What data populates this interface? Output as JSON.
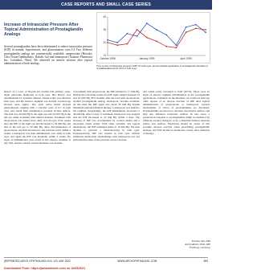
{
  "header": "CASE REPORTS AND SMALL CASE SERIES",
  "article": {
    "title": "Increase of Intraocular Pressure After Topical Administration of Prostaglandin Analogs",
    "intro": "Several prostaglandins have been determined to reduce intraocular pressure (IOP) in normal, hypertensive, and glaucomatous eyes.1-4 Two different prostaglandin analogs are commercially available: unoprostone (Rescula; Ciba Vision Ophthalmics, Duluth, Ga) and latanoprost (Xalatan; Pharmacia Inc, Columbus, Ohio). We observed an inverse reaction after topical administration of both analogs."
  },
  "figure": {
    "chart_data": {
      "type": "line",
      "categories": [
        "October 1998",
        null,
        null,
        null,
        "January 1999",
        null,
        null,
        null,
        "April 1999",
        null,
        null
      ],
      "series": [
        {
          "color": "#2f5fb3",
          "values": [
            22,
            20,
            27,
            25,
            35,
            30,
            26,
            18,
            32,
            34,
            28
          ]
        },
        {
          "color": "#c0302b",
          "values": [
            20,
            18,
            19,
            30,
            24,
            21,
            17,
            16,
            28,
            31,
            30
          ]
        }
      ],
      "ylim": [
        10,
        40
      ],
      "yticks": [
        10,
        20,
        30,
        40
      ],
      "grid": false
    },
    "caption": "Time course of intraocular pressure (IOP) for both eyes. Arrows indicate application of prostaglandin derivates or crystalline/latanoprost (OU) of both eyes."
  },
  "body": {
    "columns": [
      "Report of a Case. A 58-year-old woman had primary open-angle glaucoma diagnosed in both eyes. Her history was unremarkable for systemic disease. Visual acuity was 20/20 in both eyes, and the anterior segment was normal. Gonioscopy showed open angles. The optic nerve heads showed glaucomatous cupping with a cup-disc ratio of 0.7 in both eyes, and visual field examination revealed arcuate defects. The IOP was 24 mm Hg in the right eye and 22 mm Hg in the left eye under treatment with timolol maleate. Treatment with unoprostone was added twice daily in both eyes. Four weeks later the IOP of the right eye had increased to 34 mm Hg and that of the left eye to 30 mm Hg. After discontinuation of unoprostone, the IOP decreased to the previous level within 2 weeks. Latanoprost was then administered once daily in both eyes, and again the IOP rose markedly within 3 weeks. No signs of inflammation were noted in the anterior chamber at any visit, and the central corneal thickness was normal.",
      "of treatment with unoprostone, the IOP returned to 17 mm Hg. During the following weeks the IOP again ranged between 15 and 19 mm Hg. Five months after the trial with unoprostone, another prostaglandin analog, latanoprost, became available. At this time the IOP again was about 30 mm Hg despite maximum tolerated medical therapy. Latanoprost was added to the regimen. Surprisingly, the IOP immediately increased to 40 mm Hg. After 3 days of treatment, latanoprost was stopped and the IOP decreased to 22 mm Hg within 5 days. The increase of IOP was accompanied by corneal edema and a decreased visual acuity. With other systemic and topical medications, the IOP remained stable at 19 mm Hg. We then decided to perform a trabeculectomy in both eyes. Postoperatively, IOP was normal in both eyes without additional medication. Rechallenge with latanoprost was not performed because of the previous severe reaction.",
      "and visual acuity increased to 6/20 (20/70). There were no signs of anterior segment inflammation at the prostaglandin applications. Comment. In the literature, we could not find any other reports of an inverse reaction of IOP after topical administration of unoprostone or latanoprost. Several mechanisms of action of prostaglandins are discussed. Prostaglandins are known to increase uveoscleral outflow and may also influence trabecular outflow. In rare cases, a paradoxical response to prostaglandins might be mediated by different receptor subtypes or by a disturbed balance between inflow and outflow. Physicians should be aware of this possible adverse reaction when prescribing prostaglandin analogs, and IOP should be monitored closely after initiation of therapy."
    ]
  },
  "signature": [
    "Thomas Yeo, MD",
    "Armin Reich, PhD, MD",
    "Freiburg, Germany"
  ],
  "footer": {
    "left": "(REPRINTED) ARCH OPHTHALMOL/VOL 120, MAY 2002",
    "center": "WWW.ARCHOPHTHALMOL.COM",
    "right": "699"
  },
  "download": "Downloaded From: https://jamanetwork.com/ on 10/05/2021"
}
